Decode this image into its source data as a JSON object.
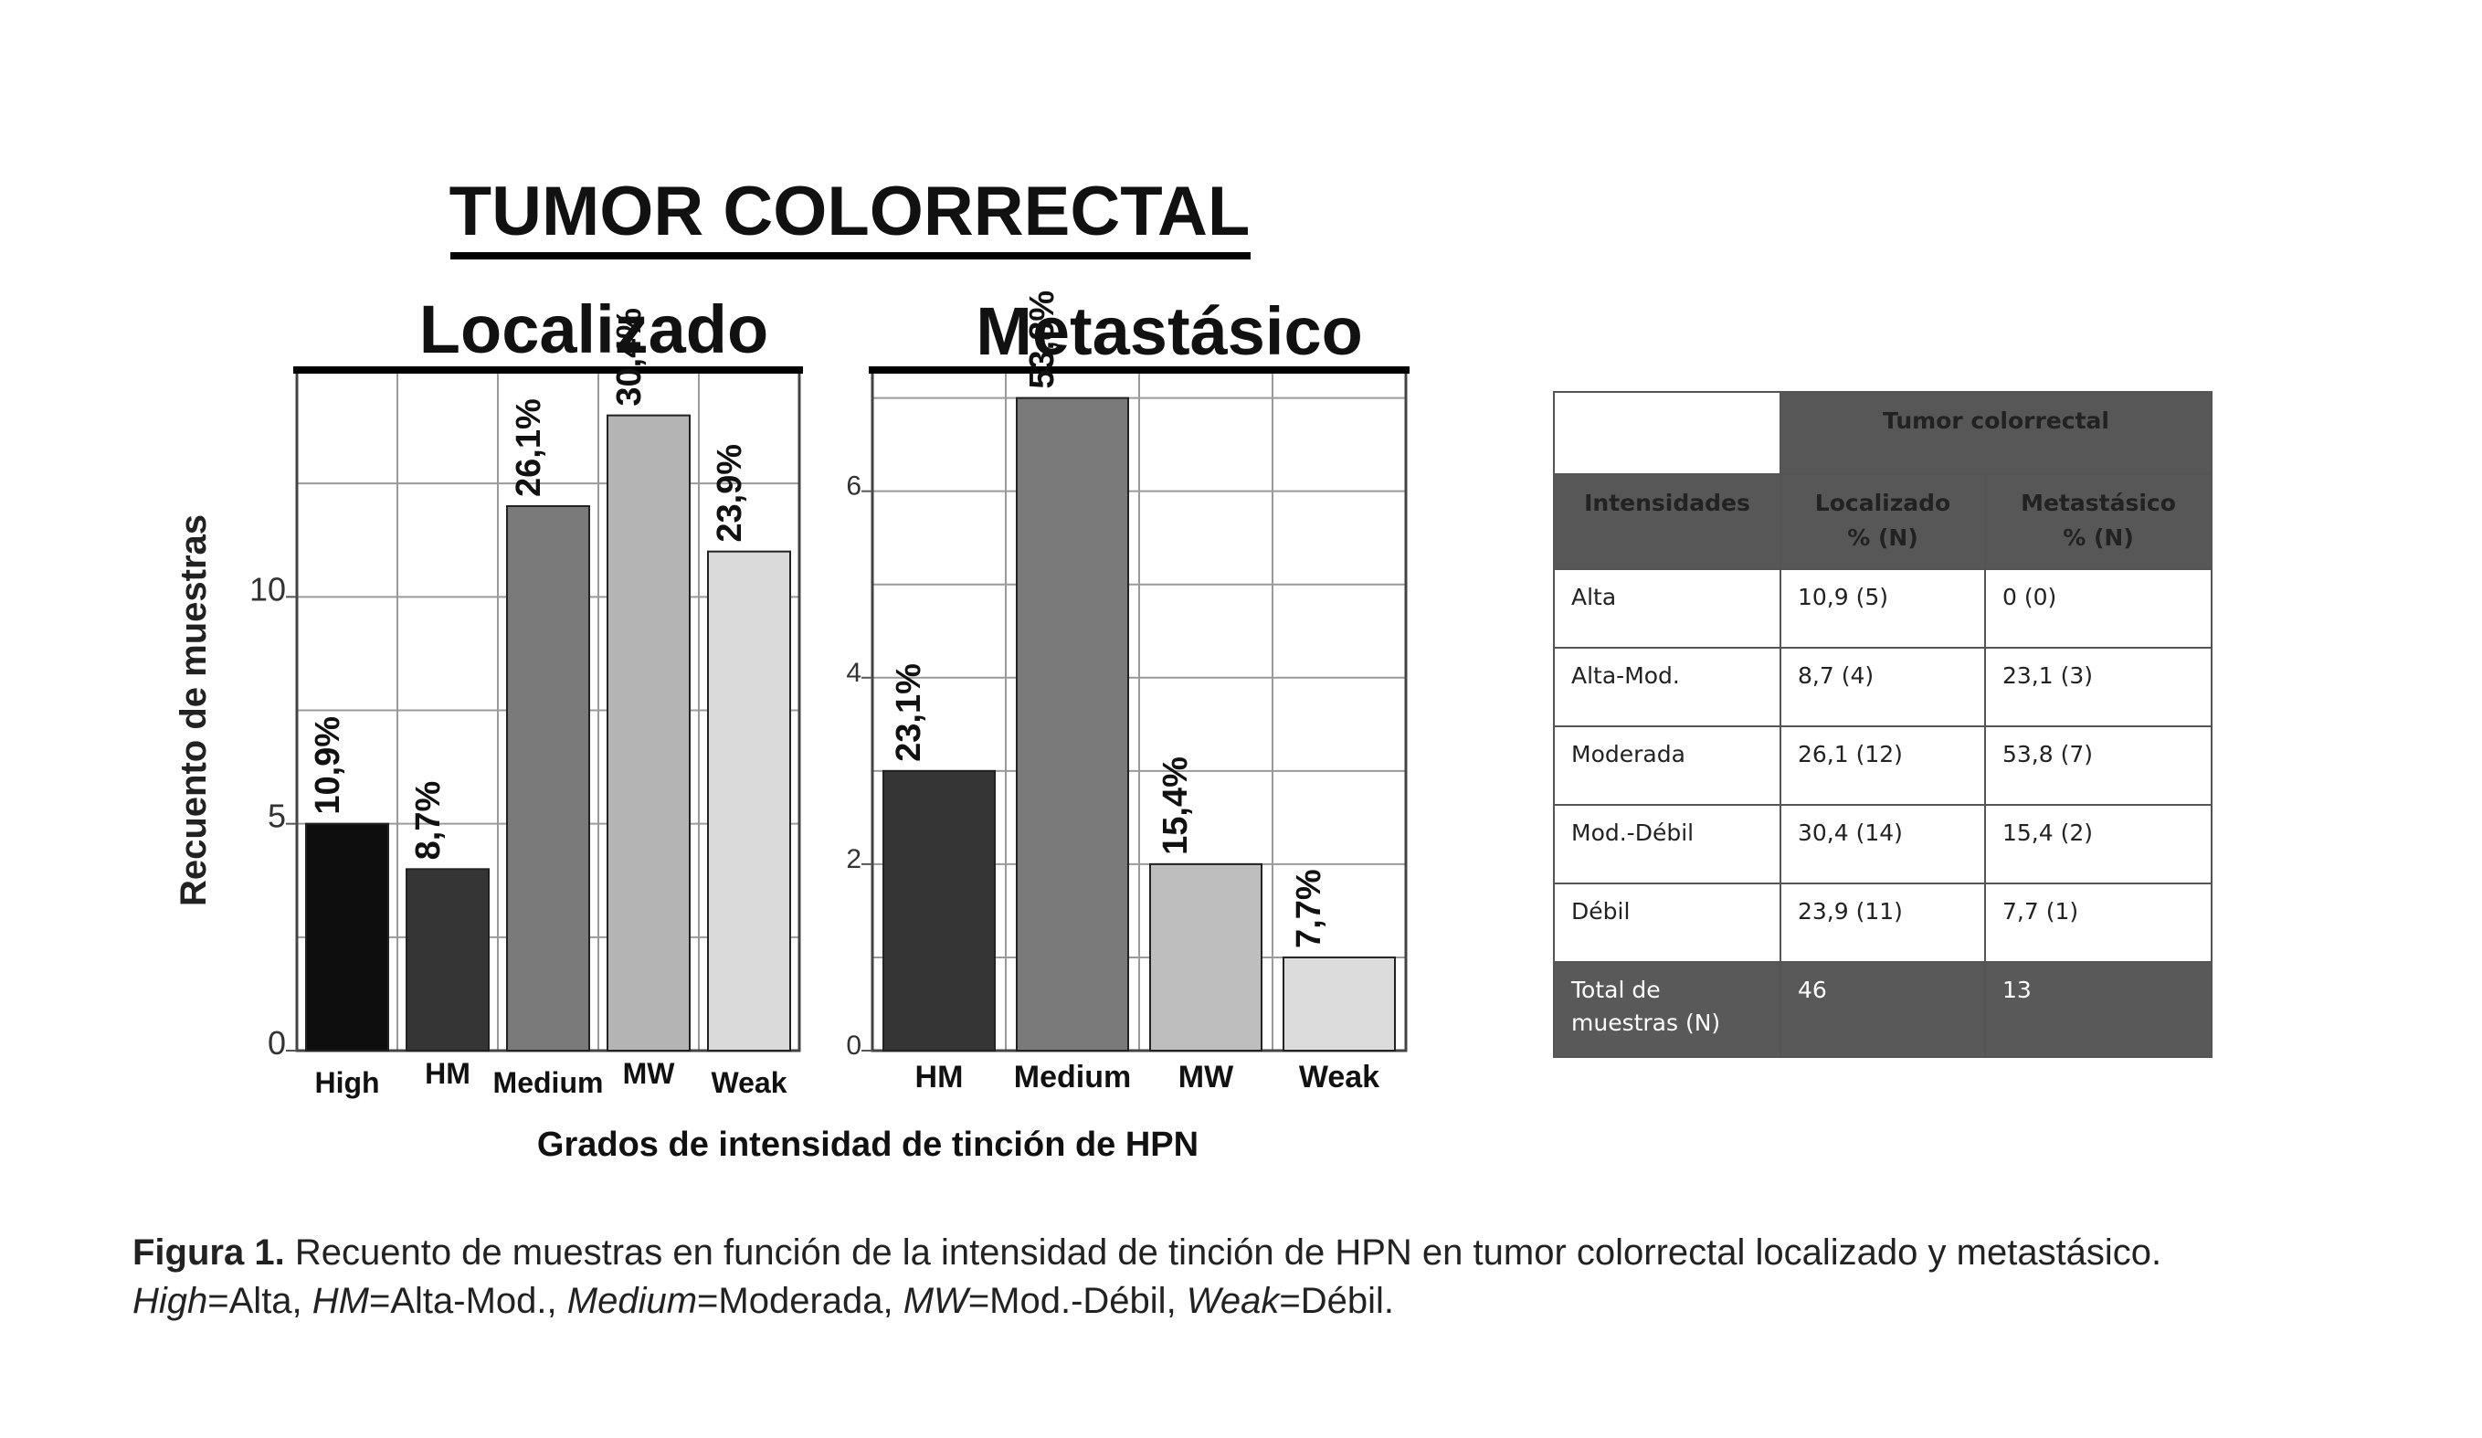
{
  "header": {
    "title": "TUMOR COLORRECTAL"
  },
  "chart_data": [
    {
      "type": "bar",
      "title": "Localizado",
      "ylabel": "Recuento de muestras",
      "xlabel": "Grados de intensidad de tinción de HPN",
      "categories": [
        "High",
        "HM",
        "Medium",
        "MW",
        "Weak"
      ],
      "values": [
        5,
        4,
        12,
        14,
        11
      ],
      "data_labels": [
        "10,9%",
        "8,7%",
        "26,1%",
        "30,4%",
        "23,9%"
      ],
      "colors": [
        "#0e0e0e",
        "#353535",
        "#7a7a7a",
        "#b4b4b4",
        "#dadada"
      ],
      "ylim": [
        0,
        15
      ],
      "yticks": [
        0,
        5,
        10
      ],
      "grid": true
    },
    {
      "type": "bar",
      "title": "Metastásico",
      "categories": [
        "HM",
        "Medium",
        "MW",
        "Weak"
      ],
      "values": [
        3,
        7,
        2,
        1
      ],
      "data_labels": [
        "23,1%",
        "53,8%",
        "15,4%",
        "7,7%"
      ],
      "colors": [
        "#353535",
        "#7a7a7a",
        "#bebebe",
        "#dcdcdc"
      ],
      "ylim": [
        0,
        7.3
      ],
      "yticks": [
        0,
        2,
        4,
        6
      ],
      "grid": true
    },
    {
      "type": "table",
      "group_header": "Tumor colorrectal",
      "columns": [
        "Intensidades",
        "Localizado\n% (N)",
        "Metastásico\n% (N)"
      ],
      "rows": [
        [
          "Alta",
          "10,9 (5)",
          "0 (0)"
        ],
        [
          "Alta-Mod.",
          "8,7 (4)",
          "23,1 (3)"
        ],
        [
          "Moderada",
          "26,1 (12)",
          "53,8 (7)"
        ],
        [
          "Mod.-Débil",
          "30,4 (14)",
          "15,4 (2)"
        ],
        [
          "Débil",
          "23,9 (11)",
          "7,7 (1)"
        ],
        [
          "Total de\nmuestras (N)",
          "46",
          "13"
        ]
      ]
    }
  ],
  "caption": {
    "label": "Figura 1.",
    "line1": "Recuento de muestras en función de la intensidad de tinción de HPN en tumor colorrectal localizado y metastásico.",
    "line2": [
      {
        "t": "High",
        "i": true
      },
      {
        "t": "=Alta, ",
        "i": false
      },
      {
        "t": "HM",
        "i": true
      },
      {
        "t": "=Alta-Mod., ",
        "i": false
      },
      {
        "t": "Medium",
        "i": true
      },
      {
        "t": "=Moderada, ",
        "i": false
      },
      {
        "t": "MW",
        "i": true
      },
      {
        "t": "=Mod.-Débil, ",
        "i": false
      },
      {
        "t": "Weak",
        "i": true
      },
      {
        "t": "=Débil.",
        "i": false
      }
    ]
  }
}
